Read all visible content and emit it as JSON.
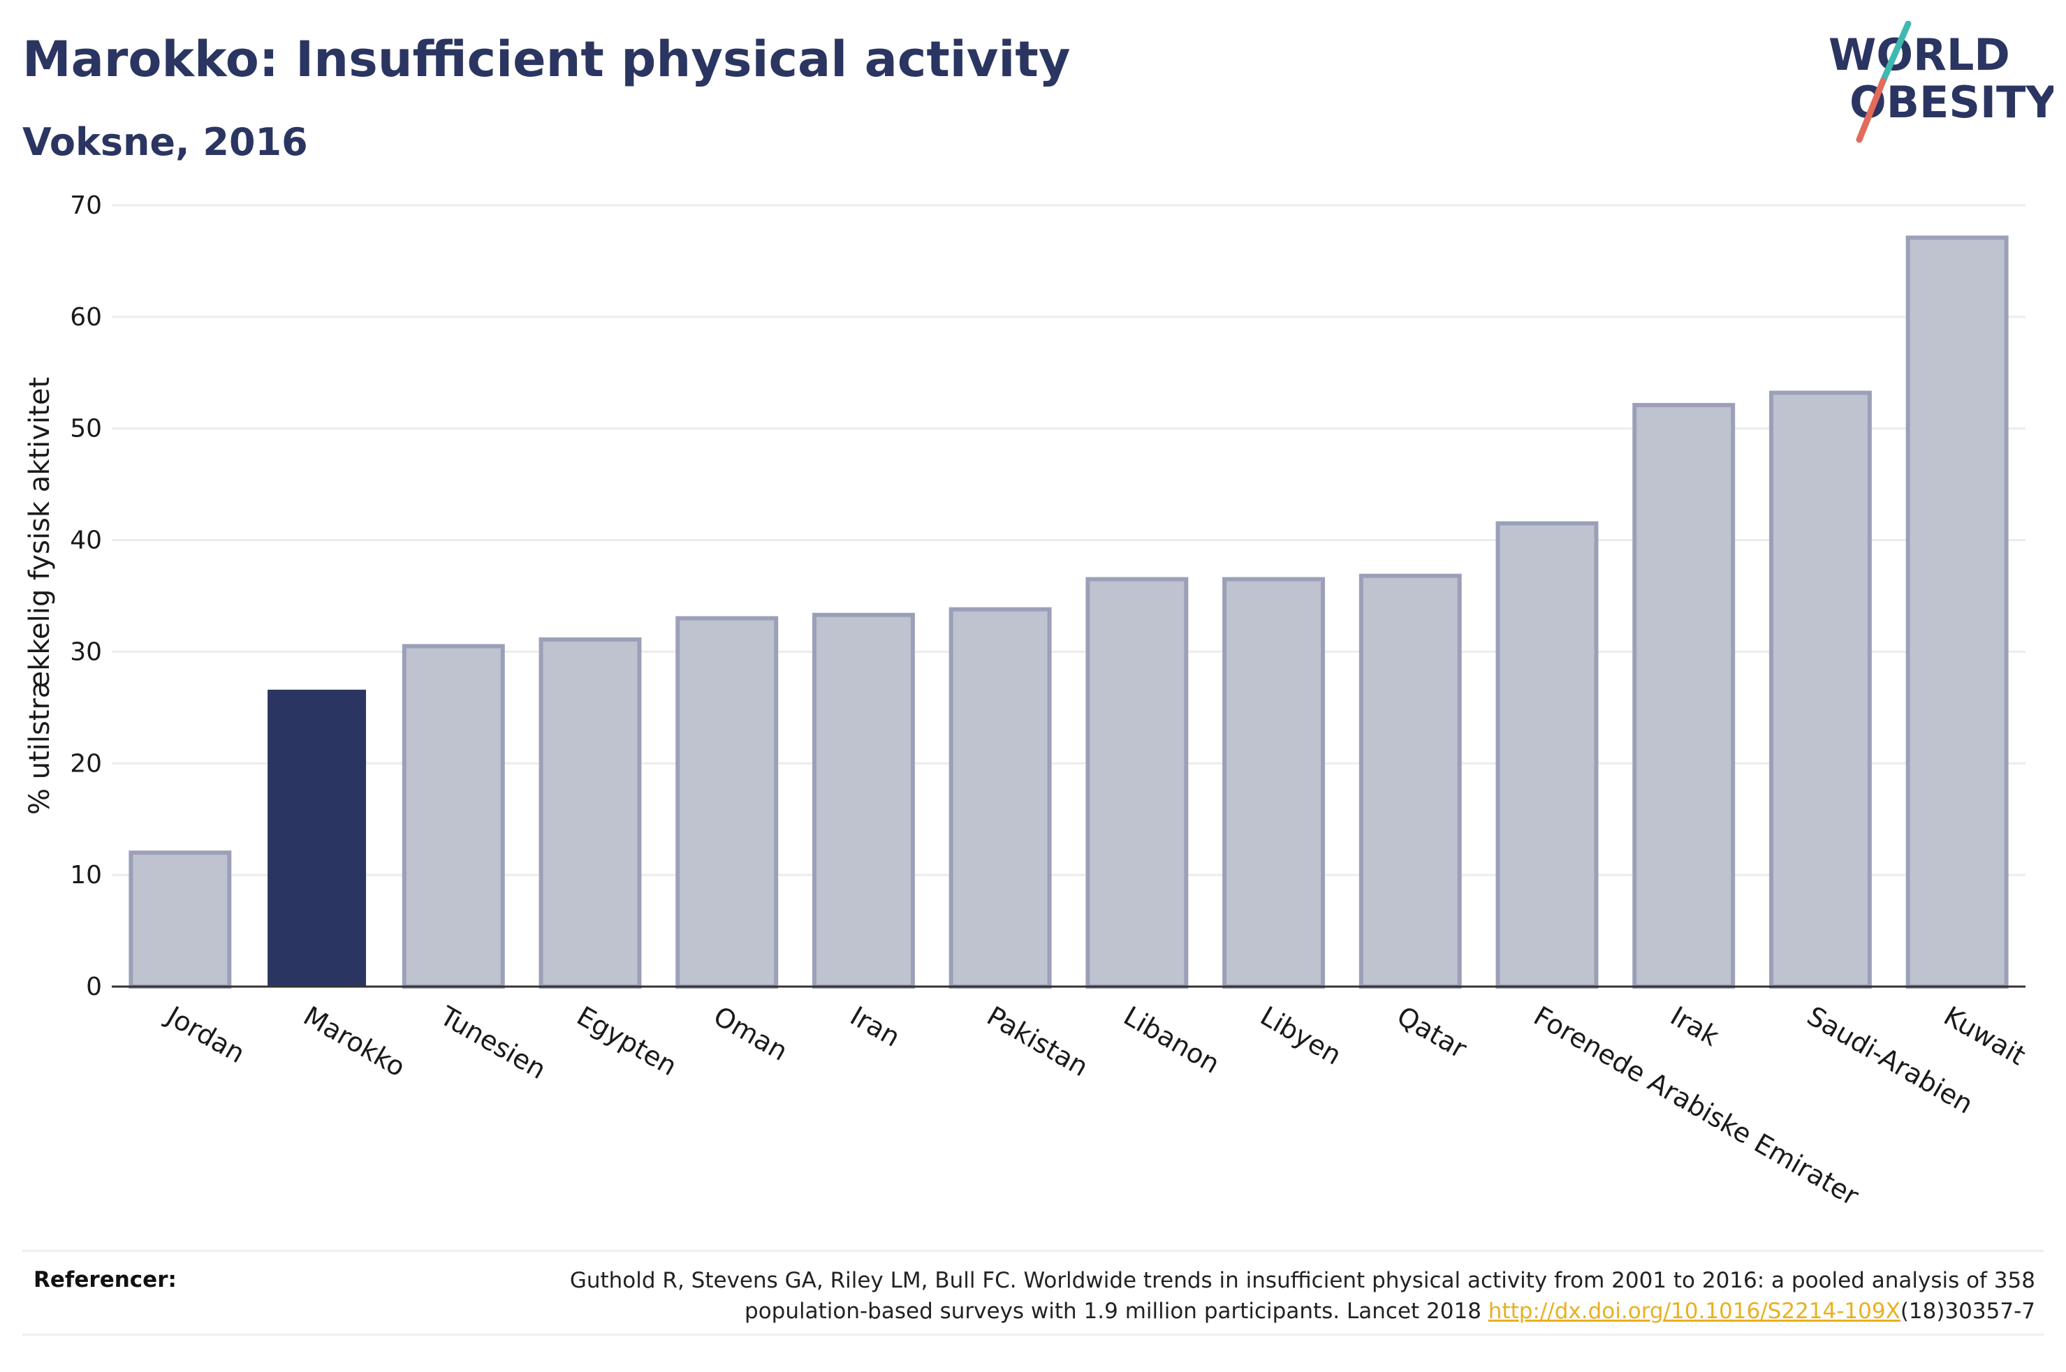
{
  "header": {
    "title": "Marokko: Insufficient physical activity",
    "subtitle": "Voksne, 2016"
  },
  "logo": {
    "line1": "WORLD",
    "line2": "OBESITY",
    "colors": {
      "text": "#2b3561",
      "slash_teal": "#3fb8b0",
      "slash_red": "#e46a5a"
    }
  },
  "chart_data": {
    "type": "bar",
    "categories": [
      "Jordan",
      "Marokko",
      "Tunesien",
      "Egypten",
      "Oman",
      "Iran",
      "Pakistan",
      "Libanon",
      "Libyen",
      "Qatar",
      "Forenede Arabiske Emirater",
      "Irak",
      "Saudi-Arabien",
      "Kuwait"
    ],
    "values": [
      12.0,
      26.6,
      30.5,
      31.1,
      33.0,
      33.3,
      33.8,
      36.5,
      36.5,
      36.8,
      41.5,
      52.1,
      53.2,
      67.1
    ],
    "highlight": "Marokko",
    "xlabel": "",
    "ylabel": "% utilstrækkelig fysisk aktivitet",
    "ylim": [
      0,
      70
    ],
    "yticks": [
      0,
      10,
      20,
      30,
      40,
      50,
      60,
      70
    ],
    "grid": true,
    "colors": {
      "highlight": "#2b3561",
      "other_fill": "#bfc2cf",
      "other_stroke": "#9ba0b8",
      "grid": "#ececec",
      "axis": "#333333"
    }
  },
  "references": {
    "label": "Referencer:",
    "text_line1": "Guthold R, Stevens GA, Riley LM, Bull FC. Worldwide trends in insufficient physical activity from 2001 to 2016: a pooled analysis of 358",
    "text_line2_before": "population-based surveys with 1.9 million participants. Lancet 2018 ",
    "link_text": "http://dx.doi.org/10.1016/S2214-109X",
    "text_after": "(18)30357-7"
  }
}
